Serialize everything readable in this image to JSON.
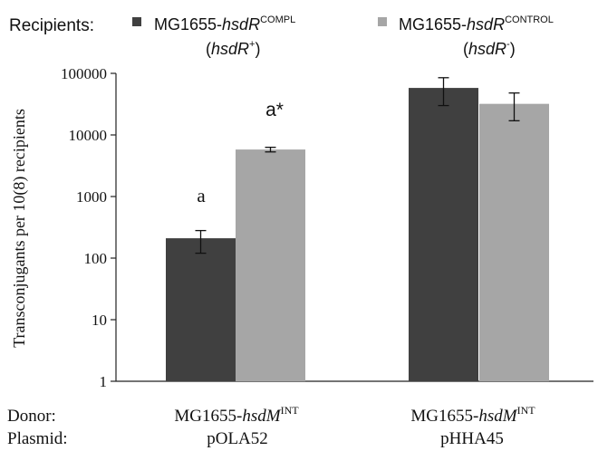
{
  "legend": {
    "title": "Recipients:",
    "items": [
      {
        "prefix": "MG1655-",
        "italic": "hsdR",
        "sup": "COMPL",
        "subtitle_open": "(",
        "subtitle_italic": "hsdR",
        "subtitle_sup": "+",
        "subtitle_close": ")",
        "color": "#404040"
      },
      {
        "prefix": "MG1655-",
        "italic": "hsdR",
        "sup": "CONTROL",
        "subtitle_open": "(",
        "subtitle_italic": "hsdR",
        "subtitle_sup": "-",
        "subtitle_close": ")",
        "color": "#a6a6a6"
      }
    ]
  },
  "footer": {
    "donor_label": "Donor:",
    "plasmid_label": "Plasmid:",
    "groups": [
      {
        "donor_prefix": "MG1655-",
        "donor_italic": "hsdM",
        "donor_sup": "INT",
        "plasmid": "pOLA52"
      },
      {
        "donor_prefix": "MG1655-",
        "donor_italic": "hsdM",
        "donor_sup": "INT",
        "plasmid": "pHHA45"
      }
    ]
  },
  "chart_data": {
    "type": "bar",
    "categories": [
      "pOLA52",
      "pHHA45"
    ],
    "ylabel": "Transconjugants per 10(8) recipients",
    "yscale": "log",
    "ylim": [
      1,
      100000
    ],
    "yticks": [
      "1",
      "10",
      "100",
      "1000",
      "10000",
      "100000"
    ],
    "grid": false,
    "legend_position": "top",
    "series": [
      {
        "values": [
          210,
          58000
        ],
        "error_low": [
          120,
          30000
        ],
        "error_high": [
          280,
          85000
        ],
        "color": "#404040"
      },
      {
        "values": [
          5800,
          32000
        ],
        "error_low": [
          5300,
          17000
        ],
        "error_high": [
          6300,
          48000
        ],
        "color": "#a6a6a6"
      }
    ],
    "annotations": [
      {
        "category": 0,
        "series": 0,
        "text": "a"
      },
      {
        "category": 0,
        "series": 1,
        "text": "a*"
      }
    ]
  }
}
